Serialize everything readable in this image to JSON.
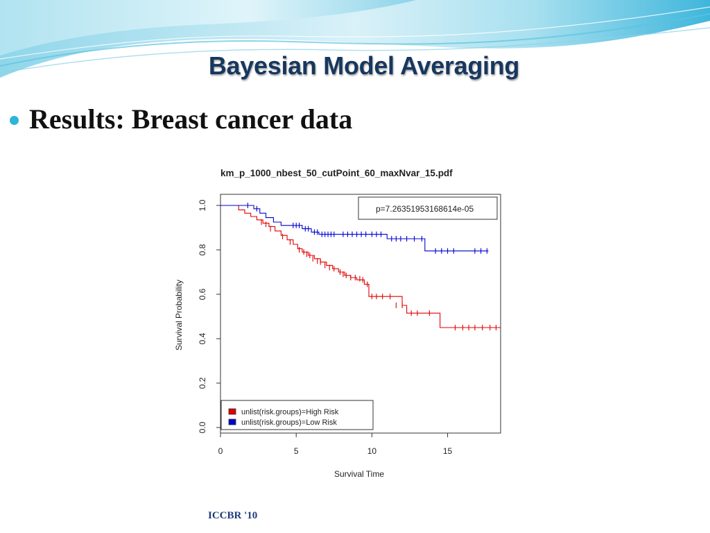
{
  "slide": {
    "title": "Bayesian Model Averaging",
    "bullet": "Results: Breast cancer data",
    "footer": "ICCBR '10",
    "colors": {
      "title": "#17375e",
      "bullet_dot": "#2bb5d8",
      "header_wave": "#5bc3e0"
    }
  },
  "chart_data": {
    "type": "line",
    "step": true,
    "title": "km_p_1000_nbest_50_cutPoint_60_maxNvar_15.pdf",
    "xlabel": "Survival Time",
    "ylabel": "Survival Probability",
    "xlim": [
      0,
      18.5
    ],
    "ylim": [
      0,
      1.0
    ],
    "xticks": [
      0,
      5,
      10,
      15
    ],
    "yticks": [
      0.0,
      0.2,
      0.4,
      0.6,
      0.8,
      1.0
    ],
    "ytick_labels": [
      "0.0",
      "0.2",
      "0.4",
      "0.6",
      "0.8",
      "1.0"
    ],
    "grid": false,
    "annotation": "p=7.26351953168614e-05",
    "annotation_position": "top-right",
    "legend_position": "bottom-left",
    "series": [
      {
        "name": "unlist(risk.groups)=High Risk",
        "color": "#e00000",
        "x": [
          0,
          1.2,
          1.6,
          2.0,
          2.4,
          2.8,
          3.2,
          3.6,
          4.0,
          4.4,
          4.8,
          5.1,
          5.4,
          5.8,
          6.2,
          6.6,
          7.0,
          7.4,
          7.8,
          8.2,
          8.6,
          9.0,
          9.5,
          9.8,
          12.0,
          12.3,
          14.5,
          18.5
        ],
        "y": [
          1.0,
          0.98,
          0.965,
          0.95,
          0.935,
          0.92,
          0.905,
          0.885,
          0.865,
          0.845,
          0.825,
          0.805,
          0.79,
          0.775,
          0.76,
          0.745,
          0.73,
          0.715,
          0.7,
          0.685,
          0.675,
          0.665,
          0.645,
          0.59,
          0.55,
          0.515,
          0.45,
          0.45
        ],
        "censor_x": [
          2.7,
          3.0,
          3.3,
          4.1,
          4.6,
          5.2,
          5.5,
          5.7,
          5.9,
          6.1,
          6.4,
          6.6,
          6.9,
          7.2,
          7.5,
          7.9,
          8.1,
          8.3,
          8.6,
          8.9,
          9.2,
          9.4,
          9.7,
          10.0,
          10.3,
          10.7,
          11.2,
          11.6,
          12.0,
          12.6,
          13.0,
          13.8,
          15.5,
          16.0,
          16.4,
          16.8,
          17.3,
          17.8,
          18.2
        ],
        "censor_y": [
          0.925,
          0.915,
          0.895,
          0.86,
          0.835,
          0.8,
          0.79,
          0.78,
          0.775,
          0.76,
          0.75,
          0.745,
          0.73,
          0.72,
          0.715,
          0.7,
          0.69,
          0.685,
          0.675,
          0.675,
          0.67,
          0.665,
          0.645,
          0.59,
          0.59,
          0.59,
          0.59,
          0.55,
          0.55,
          0.515,
          0.515,
          0.515,
          0.45,
          0.45,
          0.45,
          0.45,
          0.45,
          0.45,
          0.45
        ]
      },
      {
        "name": "unlist(risk.groups)=Low Risk",
        "color": "#0000d0",
        "x": [
          0,
          2.2,
          2.6,
          3.0,
          3.5,
          4.0,
          5.4,
          6.0,
          6.5,
          11.0,
          13.5,
          17.7
        ],
        "y": [
          1.0,
          0.985,
          0.965,
          0.945,
          0.925,
          0.91,
          0.895,
          0.88,
          0.87,
          0.85,
          0.795,
          0.795
        ],
        "censor_x": [
          1.8,
          2.4,
          4.8,
          5.0,
          5.2,
          5.6,
          5.8,
          6.2,
          6.4,
          6.7,
          6.9,
          7.1,
          7.3,
          7.5,
          8.1,
          8.4,
          8.7,
          9.0,
          9.3,
          9.6,
          10.0,
          10.3,
          10.6,
          11.3,
          11.6,
          11.9,
          12.3,
          12.8,
          13.3,
          14.2,
          14.6,
          15.0,
          15.4,
          16.8,
          17.2,
          17.6
        ],
        "censor_y": [
          1.0,
          0.985,
          0.91,
          0.91,
          0.91,
          0.895,
          0.895,
          0.88,
          0.88,
          0.87,
          0.87,
          0.87,
          0.87,
          0.87,
          0.87,
          0.87,
          0.87,
          0.87,
          0.87,
          0.87,
          0.87,
          0.87,
          0.87,
          0.85,
          0.85,
          0.85,
          0.85,
          0.85,
          0.85,
          0.795,
          0.795,
          0.795,
          0.795,
          0.795,
          0.795,
          0.795
        ]
      }
    ]
  }
}
